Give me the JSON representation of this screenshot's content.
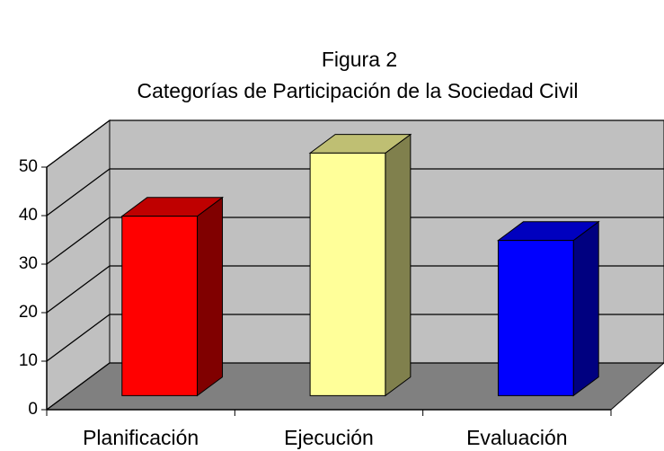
{
  "chart_data": {
    "type": "bar3d",
    "title": "Figura 2",
    "subtitle": "Categorías de Participación de la Sociedad Civil",
    "categories": [
      "Planificación",
      "Ejecución",
      "Evaluación"
    ],
    "values": [
      37,
      50,
      32
    ],
    "colors": [
      "#ff0000",
      "#ffff99",
      "#0000ff"
    ],
    "ylim": [
      0,
      50
    ],
    "yticks": [
      0,
      10,
      20,
      30,
      40,
      50
    ],
    "grid": true
  }
}
